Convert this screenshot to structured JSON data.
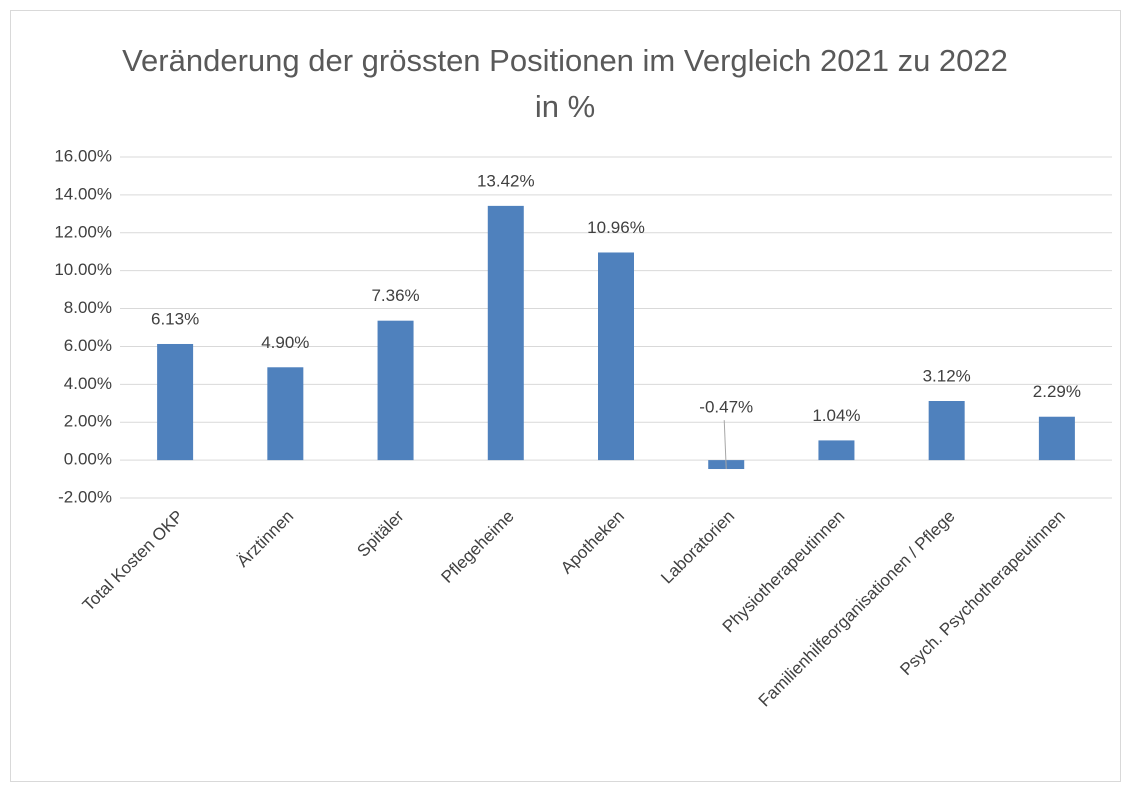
{
  "chart_data": {
    "type": "bar",
    "title": "Veränderung der grössten Positionen im Vergleich 2021 zu 2022 in %",
    "categories": [
      "Total Kosten OKP",
      "Ärztinnen",
      "Spitäler",
      "Pflegeheime",
      "Apotheken",
      "Laboratorien",
      "Physiotherapeutinnen",
      "Familienhilfeorganisationen / Pflege",
      "Psych. Psychotherapeutinnen"
    ],
    "values": [
      6.13,
      4.9,
      7.36,
      13.42,
      10.96,
      -0.47,
      1.04,
      3.12,
      2.29
    ],
    "value_labels": [
      "6.13%",
      "4.90%",
      "7.36%",
      "13.42%",
      "10.96%",
      "-0.47%",
      "1.04%",
      "3.12%",
      "2.29%"
    ],
    "color": "#4f81bd",
    "ylim": [
      -2,
      16
    ],
    "yticks": [
      {
        "value": -2,
        "label": "-2.00%"
      },
      {
        "value": 0,
        "label": "0.00%"
      },
      {
        "value": 2,
        "label": "2.00%"
      },
      {
        "value": 4,
        "label": "4.00%"
      },
      {
        "value": 6,
        "label": "6.00%"
      },
      {
        "value": 8,
        "label": "8.00%"
      },
      {
        "value": 10,
        "label": "10.00%"
      },
      {
        "value": 12,
        "label": "12.00%"
      },
      {
        "value": 14,
        "label": "14.00%"
      },
      {
        "value": 16,
        "label": "16.00%"
      }
    ],
    "grid": true
  }
}
